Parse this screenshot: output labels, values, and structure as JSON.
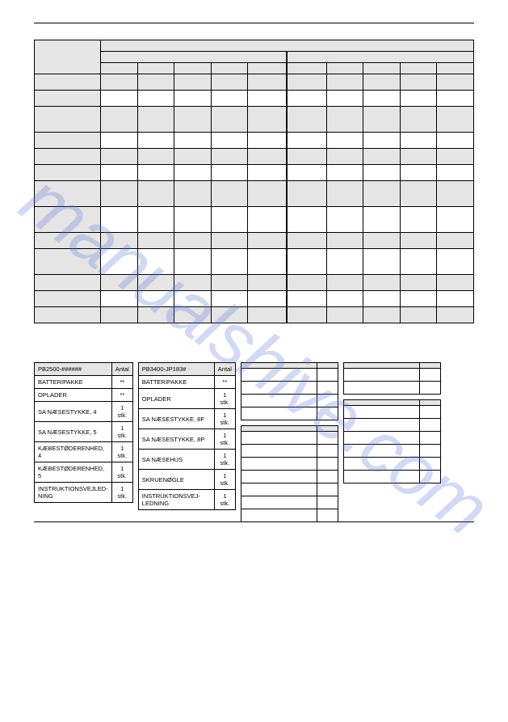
{
  "watermark": "manualshive.com",
  "spec_table": {
    "row_count": 13,
    "col_count": 11,
    "label_width": 82
  },
  "box1": {
    "header": "PB2500-######",
    "qty_header": "Antal",
    "rows": [
      {
        "name": "BATTERIPAKKE",
        "qty": "**"
      },
      {
        "name": "OPLADER",
        "qty": "**"
      },
      {
        "name": "SA NÆSESTYKKE, 4",
        "qty": "1 stk."
      },
      {
        "name": "SA NÆSESTYKKE, 5",
        "qty": "1 stk."
      },
      {
        "name": "KÆBESTØDERENHED, 4",
        "qty": "1 stk."
      },
      {
        "name": "KÆBESTØDERENHED, 5",
        "qty": "1 stk."
      },
      {
        "name": "INSTRUKTIONSVEJLED-NING",
        "qty": "1 stk."
      }
    ]
  },
  "box2": {
    "header": "PB3400-JP183#",
    "qty_header": "Antal",
    "rows": [
      {
        "name": "BATTERIPAKKE",
        "qty": "**"
      },
      {
        "name": "OPLADER",
        "qty": "1 stk."
      },
      {
        "name": "SA NÆSESTYKKE, 8F",
        "qty": "1 stk."
      },
      {
        "name": "SA NÆSESTYKKE, 8P",
        "qty": "1 stk."
      },
      {
        "name": "SA NÆSEHUS",
        "qty": "1 stk."
      },
      {
        "name": "SKRUENØGLE",
        "qty": "1 stk."
      },
      {
        "name": "INSTRUKTIONSVEJ-LEDNING",
        "qty": "1 stk."
      }
    ]
  },
  "box3": {
    "header": "",
    "qty_header": "",
    "row_count": 4
  },
  "box4": {
    "header": "",
    "qty_header": "",
    "row_count": 7
  },
  "box5": {
    "header": "",
    "qty_header": "",
    "row_count": 2
  },
  "box6": {
    "header": "",
    "qty_header": "",
    "row_count": 6
  },
  "colors": {
    "shade": "#e5e5e5",
    "border": "#000000",
    "watermark": "rgba(90,120,220,0.28)"
  }
}
